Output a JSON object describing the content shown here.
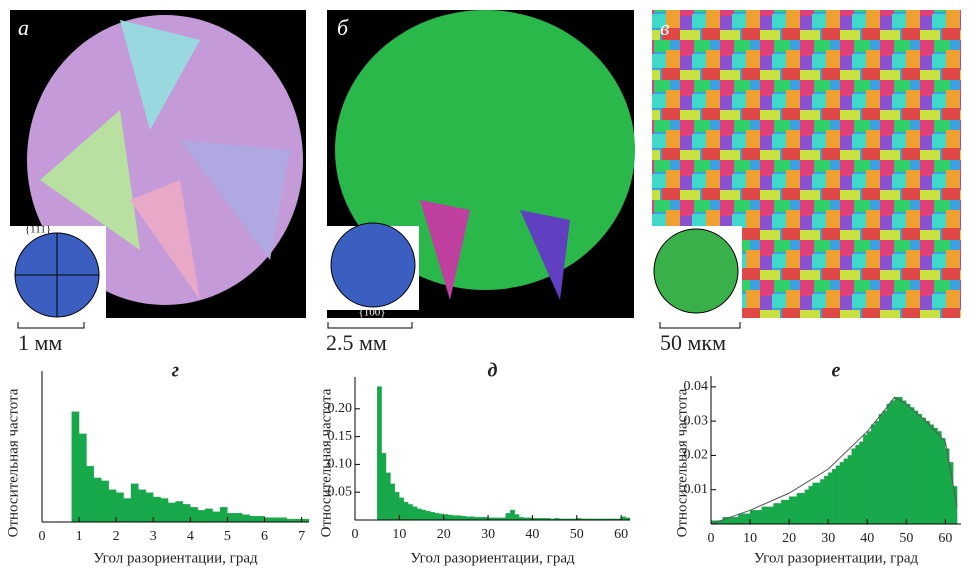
{
  "panels": [
    {
      "letter": "а",
      "scale": "1 мм",
      "pole": "{111}"
    },
    {
      "letter": "б",
      "scale": "2.5 мм",
      "pole": "{100}"
    },
    {
      "letter": "в",
      "scale": "50 мкм"
    }
  ],
  "chart_data": [
    {
      "type": "histogram",
      "title": "г",
      "xlabel": "Угол разориентации, град",
      "ylabel": "Относительная частота",
      "color": "#17a84a",
      "bins": [
        0.8,
        1.0,
        1.2,
        1.4,
        1.6,
        1.8,
        2.0,
        2.2,
        2.4,
        2.6,
        2.8,
        3.0,
        3.2,
        3.4,
        3.6,
        3.8,
        4.0,
        4.2,
        4.4,
        4.6,
        4.8,
        5.0,
        5.2,
        5.4,
        5.6,
        5.8,
        6.0,
        6.2,
        6.4,
        6.6,
        6.8,
        7.0,
        7.2
      ],
      "values": [
        0.75,
        0.6,
        0.38,
        0.3,
        0.28,
        0.22,
        0.2,
        0.16,
        0.26,
        0.22,
        0.2,
        0.17,
        0.16,
        0.13,
        0.14,
        0.12,
        0.1,
        0.08,
        0.09,
        0.07,
        0.1,
        0.06,
        0.06,
        0.05,
        0.04,
        0.04,
        0.03,
        0.03,
        0.03,
        0.02,
        0.02,
        0.02
      ],
      "xlim": [
        0,
        7.2
      ],
      "xticks": [
        0,
        1,
        2,
        3,
        4,
        5,
        6,
        7
      ],
      "ylim": [
        0,
        1
      ]
    },
    {
      "type": "histogram",
      "title": "д",
      "xlabel": "Угол разориентации, град",
      "ylabel": "Относительная частота",
      "color": "#17a84a",
      "bins": [
        5,
        6,
        7,
        8,
        9,
        10,
        11,
        12,
        13,
        14,
        15,
        16,
        17,
        18,
        19,
        20,
        21,
        22,
        23,
        24,
        25,
        26,
        27,
        28,
        29,
        30,
        31,
        32,
        33,
        34,
        35,
        36,
        37,
        38,
        39,
        40,
        41,
        42,
        43,
        44,
        45,
        46,
        47,
        48,
        49,
        50,
        51,
        52,
        53,
        54,
        55,
        56,
        57,
        58,
        59,
        60,
        61,
        62
      ],
      "values": [
        0.24,
        0.12,
        0.085,
        0.065,
        0.05,
        0.04,
        0.032,
        0.028,
        0.024,
        0.02,
        0.018,
        0.016,
        0.014,
        0.012,
        0.011,
        0.01,
        0.009,
        0.008,
        0.008,
        0.007,
        0.006,
        0.006,
        0.005,
        0.005,
        0.005,
        0.004,
        0.004,
        0.004,
        0.004,
        0.012,
        0.018,
        0.01,
        0.005,
        0.004,
        0.004,
        0.003,
        0.003,
        0.003,
        0.003,
        0.002,
        0.003,
        0.002,
        0.002,
        0.002,
        0.002,
        0.003,
        0.002,
        0.002,
        0.002,
        0.002,
        0.002,
        0.002,
        0.002,
        0.002,
        0.002,
        0.006,
        0.004
      ],
      "xlim": [
        0,
        62
      ],
      "xticks": [
        0,
        10,
        20,
        30,
        40,
        50,
        60
      ],
      "ylim": [
        0,
        0.25
      ],
      "yticks": [
        0.05,
        0.1,
        0.15,
        0.2
      ],
      "ytick_labels": [
        "0.05",
        "0.10",
        "0.15",
        "0.20"
      ]
    },
    {
      "type": "histogram",
      "title": "е",
      "xlabel": "Угол разориентации, град",
      "ylabel": "Относительная частота",
      "color": "#17a84a",
      "bins": [
        0,
        1,
        2,
        3,
        4,
        5,
        6,
        7,
        8,
        9,
        10,
        11,
        12,
        13,
        14,
        15,
        16,
        17,
        18,
        19,
        20,
        21,
        22,
        23,
        24,
        25,
        26,
        27,
        28,
        29,
        30,
        31,
        32,
        33,
        34,
        35,
        36,
        37,
        38,
        39,
        40,
        41,
        42,
        43,
        44,
        45,
        46,
        47,
        48,
        49,
        50,
        51,
        52,
        53,
        54,
        55,
        56,
        57,
        58,
        59,
        60,
        61,
        62,
        63
      ],
      "values": [
        0.001,
        0.001,
        0.001,
        0.002,
        0.002,
        0.002,
        0.002,
        0.003,
        0.003,
        0.003,
        0.004,
        0.004,
        0.004,
        0.005,
        0.005,
        0.005,
        0.006,
        0.006,
        0.007,
        0.007,
        0.008,
        0.008,
        0.009,
        0.009,
        0.01,
        0.011,
        0.012,
        0.012,
        0.013,
        0.014,
        0.015,
        0.016,
        0.017,
        0.018,
        0.019,
        0.02,
        0.022,
        0.023,
        0.024,
        0.026,
        0.027,
        0.029,
        0.03,
        0.032,
        0.033,
        0.035,
        0.036,
        0.037,
        0.037,
        0.036,
        0.035,
        0.034,
        0.033,
        0.032,
        0.031,
        0.03,
        0.029,
        0.028,
        0.027,
        0.025,
        0.022,
        0.018,
        0.011
      ],
      "curve": {
        "x": [
          0,
          10,
          20,
          30,
          40,
          45,
          47,
          50,
          55,
          60,
          63
        ],
        "y": [
          0,
          0.004,
          0.009,
          0.016,
          0.027,
          0.034,
          0.037,
          0.035,
          0.03,
          0.024,
          0.005
        ]
      },
      "xlim": [
        0,
        64
      ],
      "xticks": [
        0,
        10,
        20,
        30,
        40,
        50,
        60
      ],
      "ylim": [
        0,
        0.042
      ],
      "yticks": [
        0.01,
        0.02,
        0.03,
        0.04
      ]
    }
  ]
}
